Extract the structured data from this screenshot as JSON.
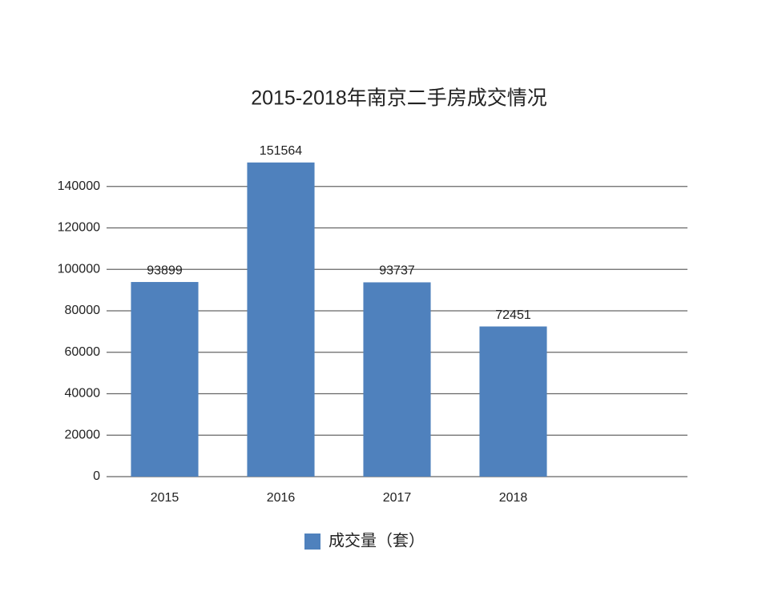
{
  "chart_data": {
    "type": "bar",
    "title": "2015-2018年南京二手房成交情况",
    "categories": [
      "2015",
      "2016",
      "2017",
      "2018"
    ],
    "series": [
      {
        "name": "成交量（套）",
        "color": "#4f81bd",
        "values": [
          93899,
          151564,
          93737,
          72451
        ]
      }
    ],
    "ylim": [
      0,
      160000
    ],
    "yticks": [
      0,
      20000,
      40000,
      60000,
      80000,
      100000,
      120000,
      140000
    ],
    "grid": true,
    "legend": "bottom"
  }
}
